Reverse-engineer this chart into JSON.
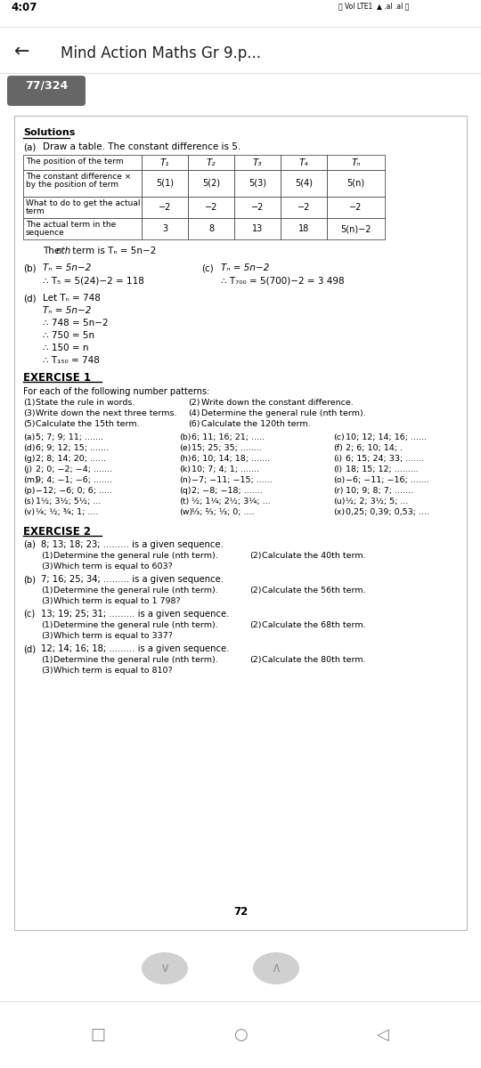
{
  "bg_color": "#ffffff",
  "status_bar_bg": "#ffffff",
  "status_bar_time": "4:07",
  "page_title": "Mind Action Maths Gr 9.p...",
  "page_num_label": "77/324",
  "page_num_bg": "#666666",
  "page_num_color": "#ffffff",
  "card_bg": "#ffffff",
  "card_border": "#cccccc",
  "nav_arrow_bg": "#d8d8d8",
  "nav_arrow_color": "#888888",
  "bottom_nav_color": "#888888"
}
